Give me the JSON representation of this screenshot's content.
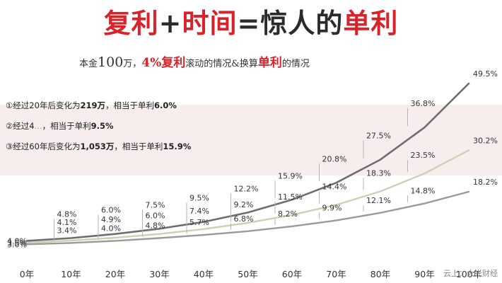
{
  "title": {
    "part1": "复利",
    "op1": "+",
    "part2": "时间",
    "op2": "=",
    "part3": "惊人的",
    "part4": "单利"
  },
  "subtitle": {
    "prefix": "本金",
    "amount": "100",
    "unit": "万，",
    "rate": "4%复利",
    "mid": "滚动的情况&换算",
    "simple": "单利",
    "suffix": "的情况"
  },
  "notes": [
    {
      "pre": "①经过20年后变化为",
      "amt": "219万",
      "mid": "，相当于单利",
      "pct": "6.0%"
    },
    {
      "pre": "②经过4",
      "blur": "...",
      "mid": "，相当于单利",
      "pct": "9.5%"
    },
    {
      "pre": "③经过60年后变化为",
      "amt": "1,053万",
      "mid": "，相当于单利",
      "pct": "15.9%"
    }
  ],
  "watermark": "云上：大光财经",
  "chart_data": {
    "type": "line",
    "x": [
      "0年",
      "10年",
      "20年",
      "30年",
      "40年",
      "50年",
      "60年",
      "70年",
      "80年",
      "90年",
      "100年"
    ],
    "series": [
      {
        "color": "#6e6e6e",
        "values": [
          4.0,
          4.8,
          6.0,
          7.5,
          9.5,
          12.2,
          15.9,
          20.8,
          27.5,
          36.8,
          49.5
        ],
        "labels": [
          "4.0%",
          "4.8%",
          "6.0%",
          "7.5%",
          "9.5%",
          "12.2%",
          "15.9%",
          "20.8%",
          "27.5%",
          "36.8%",
          "49.5%"
        ]
      },
      {
        "color": "#cfcfb8",
        "values": [
          3.5,
          4.1,
          4.9,
          6.0,
          7.4,
          9.2,
          11.5,
          14.4,
          18.3,
          23.5,
          30.2
        ],
        "labels": [
          "3.5%",
          "4.1%",
          "4.9%",
          "6.0%",
          "7.4%",
          "9.2%",
          "11.5%",
          "14.4%",
          "18.3%",
          "23.5%",
          "30.2%"
        ]
      },
      {
        "color": "#9a9a9a",
        "values": [
          3.0,
          3.4,
          4.0,
          4.8,
          5.7,
          6.8,
          8.2,
          9.9,
          12.1,
          14.8,
          18.2
        ],
        "labels": [
          "3.0%",
          "3.4%",
          "4.0%",
          "4.8%",
          "5.7%",
          "6.8%",
          "8.2%",
          "9.9%",
          "12.1%",
          "14.8%",
          "18.2%"
        ]
      }
    ],
    "grid": false,
    "legend": "none"
  }
}
